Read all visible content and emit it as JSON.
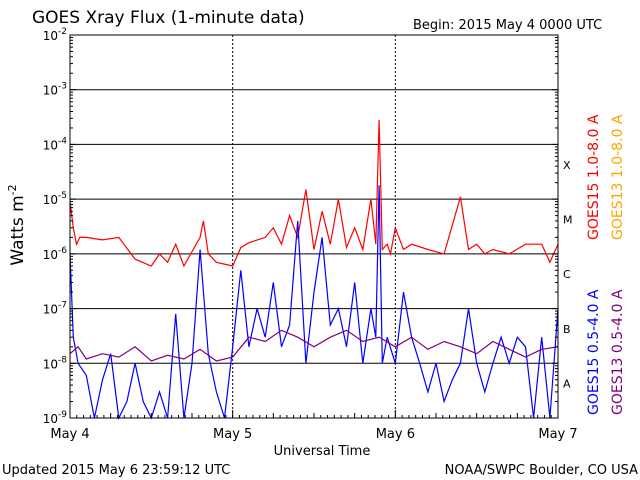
{
  "chart_data": {
    "type": "line",
    "title": "GOES Xray Flux (1-minute data)",
    "begin_label": "Begin:  2015 May 4 0000 UTC",
    "xlabel": "Universal Time",
    "ylabel": "Watts m",
    "ylabel_sup": "-2",
    "y_scale": "log",
    "ylim": [
      1e-09,
      0.01
    ],
    "xlim": [
      0,
      3
    ],
    "x_ticks": [
      {
        "value": 0,
        "label": "May 4"
      },
      {
        "value": 1,
        "label": "May 5"
      },
      {
        "value": 2,
        "label": "May 6"
      },
      {
        "value": 3,
        "label": "May 7"
      }
    ],
    "y_ticks": [
      {
        "exp": -2,
        "label": "10",
        "sup": "-2"
      },
      {
        "exp": -3,
        "label": "10",
        "sup": "-3"
      },
      {
        "exp": -4,
        "label": "10",
        "sup": "-4"
      },
      {
        "exp": -5,
        "label": "10",
        "sup": "-5"
      },
      {
        "exp": -6,
        "label": "10",
        "sup": "-6"
      },
      {
        "exp": -7,
        "label": "10",
        "sup": "-7"
      },
      {
        "exp": -8,
        "label": "10",
        "sup": "-8"
      },
      {
        "exp": -9,
        "label": "10",
        "sup": "-9"
      }
    ],
    "flare_classes": [
      {
        "label": "X",
        "exp": -4
      },
      {
        "label": "M",
        "exp": -5
      },
      {
        "label": "C",
        "exp": -6
      },
      {
        "label": "B",
        "exp": -7
      },
      {
        "label": "A",
        "exp": -8
      }
    ],
    "grid": true,
    "legend_position": "right (vertical)",
    "series": [
      {
        "name": "GOES15 1.0-8.0 A",
        "color": "#ff0000",
        "type": "long",
        "x": [
          0.0,
          0.02,
          0.04,
          0.06,
          0.1,
          0.2,
          0.3,
          0.4,
          0.5,
          0.55,
          0.6,
          0.65,
          0.7,
          0.8,
          0.82,
          0.85,
          0.9,
          1.0,
          1.05,
          1.1,
          1.2,
          1.25,
          1.3,
          1.35,
          1.4,
          1.45,
          1.5,
          1.55,
          1.6,
          1.65,
          1.7,
          1.75,
          1.8,
          1.85,
          1.88,
          1.9,
          1.92,
          1.95,
          1.97,
          2.0,
          2.05,
          2.1,
          2.2,
          2.3,
          2.4,
          2.45,
          2.5,
          2.55,
          2.6,
          2.7,
          2.8,
          2.9,
          2.95,
          3.0
        ],
        "y": [
          9e-06,
          3e-06,
          1.5e-06,
          2e-06,
          2e-06,
          1.8e-06,
          2e-06,
          8e-07,
          6e-07,
          1e-06,
          7e-07,
          1.5e-06,
          6e-07,
          2e-06,
          4e-06,
          1e-06,
          7e-07,
          6e-07,
          1.3e-06,
          1.6e-06,
          2e-06,
          3e-06,
          1.5e-06,
          5e-06,
          2e-06,
          1.5e-05,
          1.2e-06,
          6e-06,
          1.5e-06,
          1e-05,
          1.3e-06,
          3e-06,
          1.2e-06,
          1e-05,
          1.5e-06,
          0.00028,
          1.2e-06,
          1.5e-06,
          1e-06,
          3e-06,
          1.2e-06,
          1.5e-06,
          1.2e-06,
          1e-06,
          1.1e-05,
          1.2e-06,
          1.5e-06,
          1e-06,
          1.2e-06,
          1e-06,
          1.5e-06,
          1.5e-06,
          7e-07,
          1.5e-06
        ]
      },
      {
        "name": "GOES13 1.0-8.0 A",
        "color": "#ffa500",
        "type": "long",
        "x": [],
        "y": []
      },
      {
        "name": "GOES15 0.5-4.0 A",
        "color": "#0000ff",
        "type": "short",
        "x": [
          0.0,
          0.02,
          0.05,
          0.1,
          0.15,
          0.2,
          0.25,
          0.3,
          0.35,
          0.4,
          0.45,
          0.5,
          0.55,
          0.6,
          0.65,
          0.7,
          0.75,
          0.8,
          0.85,
          0.9,
          0.95,
          1.0,
          1.05,
          1.1,
          1.15,
          1.2,
          1.25,
          1.3,
          1.35,
          1.4,
          1.45,
          1.5,
          1.55,
          1.6,
          1.65,
          1.7,
          1.75,
          1.8,
          1.85,
          1.88,
          1.9,
          1.92,
          1.95,
          2.0,
          2.05,
          2.1,
          2.15,
          2.2,
          2.25,
          2.3,
          2.35,
          2.4,
          2.45,
          2.5,
          2.55,
          2.6,
          2.65,
          2.7,
          2.75,
          2.8,
          2.85,
          2.9,
          2.95,
          3.0
        ],
        "y": [
          1e-06,
          3e-08,
          1e-08,
          6e-09,
          1e-09,
          5e-09,
          1.5e-08,
          1e-09,
          2e-09,
          1e-08,
          2e-09,
          1e-09,
          3e-09,
          1e-09,
          8e-08,
          1e-09,
          1e-08,
          1.2e-06,
          1.5e-08,
          3e-09,
          1e-09,
          2e-08,
          5e-07,
          2e-08,
          1e-07,
          3e-08,
          3e-07,
          2e-08,
          5e-08,
          4e-06,
          1e-08,
          2e-07,
          2e-06,
          5e-08,
          1e-07,
          2e-08,
          3e-07,
          1e-08,
          1e-07,
          3e-08,
          1.8e-05,
          1e-08,
          3e-08,
          1e-08,
          2e-07,
          3e-08,
          1e-08,
          3e-09,
          1e-08,
          2e-09,
          5e-09,
          1e-08,
          1e-07,
          1e-08,
          3e-09,
          1e-08,
          3e-08,
          1e-08,
          3e-08,
          2e-08,
          1e-09,
          3e-08,
          1e-09,
          1e-07
        ]
      },
      {
        "name": "GOES13 0.5-4.0 A",
        "color": "#800080",
        "type": "short",
        "x": [
          0.0,
          0.05,
          0.1,
          0.2,
          0.3,
          0.4,
          0.5,
          0.6,
          0.7,
          0.8,
          0.9,
          1.0,
          1.1,
          1.2,
          1.3,
          1.4,
          1.5,
          1.6,
          1.7,
          1.8,
          1.9,
          2.0,
          2.1,
          2.2,
          2.3,
          2.4,
          2.5,
          2.6,
          2.7,
          2.8,
          2.9,
          3.0
        ],
        "y": [
          1.5e-08,
          2e-08,
          1.2e-08,
          1.5e-08,
          1.3e-08,
          2e-08,
          1.1e-08,
          1.4e-08,
          1.2e-08,
          1.8e-08,
          1.1e-08,
          1.3e-08,
          3e-08,
          2.5e-08,
          4e-08,
          3e-08,
          2e-08,
          3e-08,
          4e-08,
          2.5e-08,
          3e-08,
          2e-08,
          3e-08,
          1.8e-08,
          2.5e-08,
          2e-08,
          1.5e-08,
          2.5e-08,
          1.8e-08,
          1.3e-08,
          1.8e-08,
          2e-08
        ]
      }
    ]
  },
  "footer": {
    "updated": "Updated 2015 May  6 23:59:12 UTC",
    "source": "NOAA/SWPC Boulder, CO USA"
  }
}
